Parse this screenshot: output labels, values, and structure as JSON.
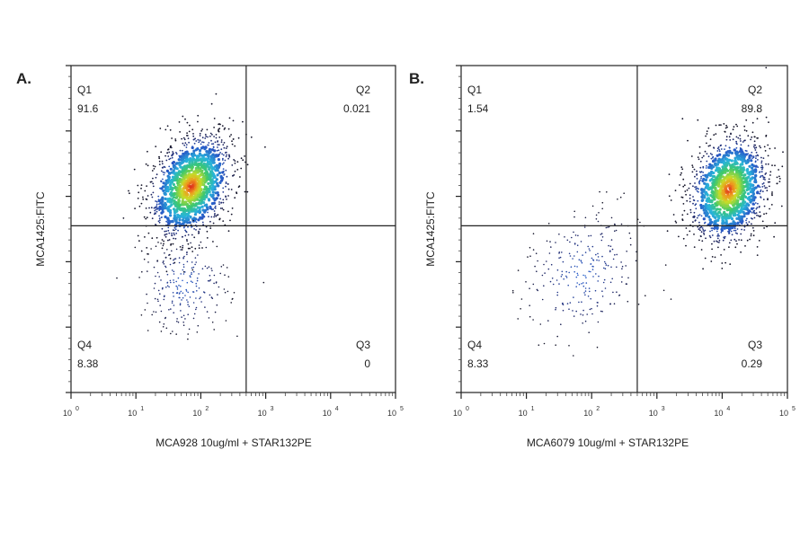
{
  "chart_data": [
    {
      "type": "scatter",
      "panel_label": "A.",
      "xlabel": "MCA928 10ug/ml + STAR132PE",
      "ylabel": "MCA1425:FITC",
      "xscale": "log",
      "xlim": [
        1,
        100000
      ],
      "ylim": [
        0,
        5
      ],
      "x_tick_labels": [
        "10",
        "10",
        "10",
        "10",
        "10",
        "10"
      ],
      "x_tick_exponents": [
        "0",
        "1",
        "2",
        "3",
        "4",
        "5"
      ],
      "gate_x": 500,
      "gate_y": 2.55,
      "quadrants": [
        {
          "name": "Q1",
          "value": "91.6"
        },
        {
          "name": "Q2",
          "value": "0.021"
        },
        {
          "name": "Q3",
          "value": "0"
        },
        {
          "name": "Q4",
          "value": "8.38"
        }
      ],
      "populations": [
        {
          "center_x_log10": 1.85,
          "center_y": 3.15,
          "spread_x_log10": 0.32,
          "spread_y": 0.38,
          "tilt": 0.35,
          "share": 0.916
        },
        {
          "center_x_log10": 1.75,
          "center_y": 1.65,
          "spread_x_log10": 0.34,
          "spread_y": 0.38,
          "tilt": 0.0,
          "share": 0.084
        }
      ]
    },
    {
      "type": "scatter",
      "panel_label": "B.",
      "xlabel": "MCA6079 10ug/ml + STAR132PE",
      "ylabel": "MCA1425:FITC",
      "xscale": "log",
      "xlim": [
        1,
        100000
      ],
      "ylim": [
        0,
        5
      ],
      "x_tick_labels": [
        "10",
        "10",
        "10",
        "10",
        "10",
        "10"
      ],
      "x_tick_exponents": [
        "0",
        "1",
        "2",
        "3",
        "4",
        "5"
      ],
      "gate_x": 500,
      "gate_y": 2.55,
      "quadrants": [
        {
          "name": "Q1",
          "value": "1.54"
        },
        {
          "name": "Q2",
          "value": "89.8"
        },
        {
          "name": "Q3",
          "value": "0.29"
        },
        {
          "name": "Q4",
          "value": "8.33"
        }
      ],
      "populations": [
        {
          "center_x_log10": 4.1,
          "center_y": 3.1,
          "spread_x_log10": 0.3,
          "spread_y": 0.4,
          "tilt": 0.2,
          "share": 0.898
        },
        {
          "center_x_log10": 1.85,
          "center_y": 1.8,
          "spread_x_log10": 0.45,
          "spread_y": 0.5,
          "tilt": 0.2,
          "share": 0.102
        }
      ]
    }
  ]
}
